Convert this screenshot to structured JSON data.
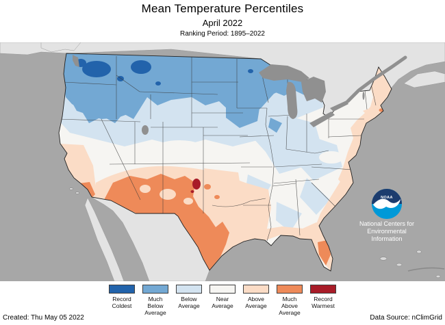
{
  "title": {
    "line1": "Mean Temperature Percentiles",
    "line2": "April 2022",
    "line3": "Ranking Period: 1895–2022"
  },
  "footer": {
    "created": "Created: Thu May 05 2022",
    "source": "Data Source: nClimGrid"
  },
  "logo": {
    "label": "NOAA",
    "org_line1": "National Centers for",
    "org_line2": "Environmental",
    "org_line3": "Information"
  },
  "legend": {
    "items": [
      {
        "key": "record_coldest",
        "color": "#2263ab",
        "label_lines": [
          "Record",
          "Coldest"
        ]
      },
      {
        "key": "much_below_average",
        "color": "#73a8d3",
        "label_lines": [
          "Much",
          "Below",
          "Average"
        ]
      },
      {
        "key": "below_average",
        "color": "#d3e3f0",
        "label_lines": [
          "Below",
          "Average"
        ]
      },
      {
        "key": "near_average",
        "color": "#f6f5f2",
        "label_lines": [
          "Near",
          "Average"
        ]
      },
      {
        "key": "above_average",
        "color": "#fbdcc6",
        "label_lines": [
          "Above",
          "Average"
        ]
      },
      {
        "key": "much_above_average",
        "color": "#ee8a59",
        "label_lines": [
          "Much",
          "Above",
          "Average"
        ]
      },
      {
        "key": "record_warmest",
        "color": "#a81c28",
        "label_lines": [
          "Record",
          "Warmest"
        ]
      }
    ]
  },
  "chart_data": {
    "type": "heatmap",
    "title": "Mean Temperature Percentiles",
    "subtitle": "April 2022",
    "ranking_period": "Ranking Period: 1895–2022",
    "data_source": "nClimGrid",
    "categories": [
      "Record Coldest",
      "Much Below Average",
      "Below Average",
      "Near Average",
      "Above Average",
      "Much Above Average",
      "Record Warmest"
    ],
    "category_colors": [
      "#2263ab",
      "#73a8d3",
      "#d3e3f0",
      "#f6f5f2",
      "#fbdcc6",
      "#ee8a59",
      "#a81c28"
    ],
    "legend_position": "bottom",
    "regions": [
      {
        "area": "Pacific Northwest (WA, OR, ID)",
        "value": "Much Below Average with Record Coldest patches"
      },
      {
        "area": "Northern Rockies / Plains (MT, ND, MN, northern WI)",
        "value": "Much Below Average"
      },
      {
        "area": "Great Basin, WY, SD, IA, Upper Midwest",
        "value": "Below Average"
      },
      {
        "area": "Central Plains, Ohio Valley, Mid-Atlantic interior",
        "value": "Near Average"
      },
      {
        "area": "Southern CA coast, OK, east TX, Gulf Coast, Southeast coast, New England",
        "value": "Above Average"
      },
      {
        "area": "AZ, NM, west and south TX, central FL peninsula",
        "value": "Much Above Average"
      },
      {
        "area": "Eastern New Mexico spot",
        "value": "Record Warmest"
      }
    ]
  },
  "map": {
    "colors": {
      "ocean": "#a7a7a7",
      "foreign_land": "#e3e3e3",
      "lakes": "#909090",
      "us_base": "#f6f5f2",
      "record_cold": "#2263ab",
      "much_below": "#73a8d3",
      "below": "#d3e3f0",
      "above": "#fbdcc6",
      "much_above": "#ee8a59",
      "record_warm": "#a81c28",
      "logo_navy": "#1c3c6e",
      "logo_cyan": "#0099d8"
    }
  }
}
